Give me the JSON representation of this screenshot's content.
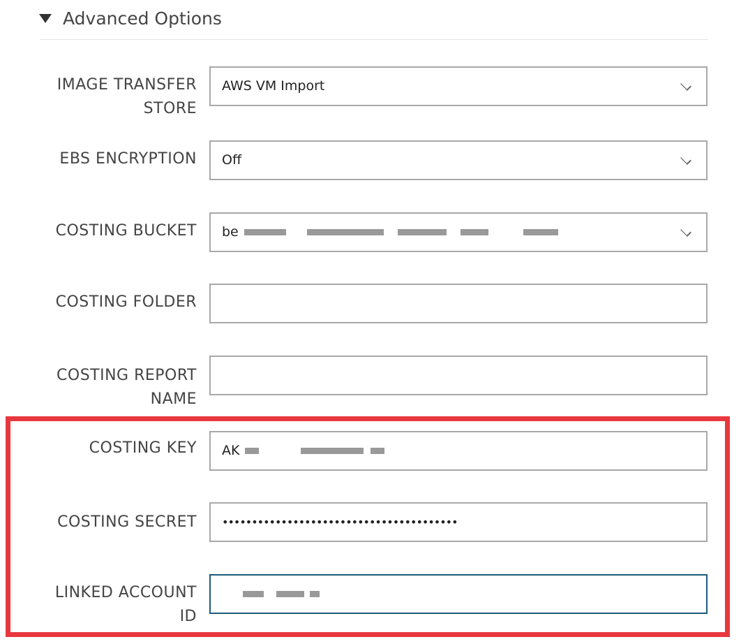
{
  "section": {
    "title": "Advanced Options",
    "expanded": true
  },
  "fields": [
    {
      "label": "IMAGE TRANSFER STORE",
      "type": "select",
      "value": "AWS VM Import"
    },
    {
      "label": "EBS ENCRYPTION",
      "type": "select",
      "value": "Off"
    },
    {
      "label": "COSTING BUCKET",
      "type": "select",
      "value": "be"
    },
    {
      "label": "COSTING FOLDER",
      "type": "text",
      "value": ""
    },
    {
      "label": "COSTING REPORT NAME",
      "type": "text",
      "value": ""
    },
    {
      "label": "COSTING KEY",
      "type": "text",
      "value": "AK"
    },
    {
      "label": "COSTING SECRET",
      "type": "password",
      "value": "••••••••••••••••••••••••••••••••••••••••"
    },
    {
      "label": "LINKED ACCOUNT ID",
      "type": "text",
      "value": "",
      "focused": true
    }
  ],
  "colors": {
    "highlight": "#e8383f",
    "focus": "#1d5a7a"
  }
}
